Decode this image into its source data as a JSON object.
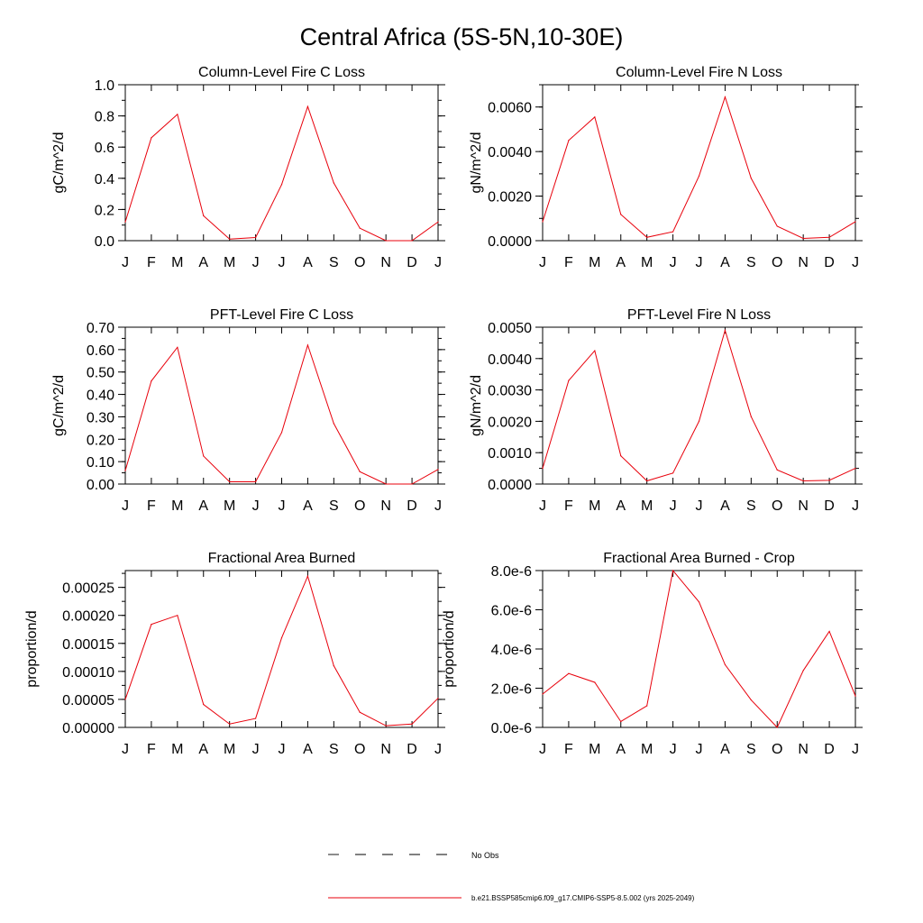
{
  "page": {
    "title": "Central Africa (5S-5N,10-30E)",
    "month_labels": [
      "J",
      "F",
      "M",
      "A",
      "M",
      "J",
      "J",
      "A",
      "S",
      "O",
      "N",
      "D",
      "J"
    ]
  },
  "legend": {
    "obs_label": "No Obs",
    "model_label": "b.e21.BSSP585cmip6.f09_g17.CMIP6-SSP5-8.5.002 (yrs 2025-2049)",
    "model_color": "#e8000b",
    "obs_color": "#000000"
  },
  "chart_data": [
    {
      "type": "line",
      "title": "Column-Level Fire C Loss",
      "ylabel": "gC/m^2/d",
      "categories": [
        "J",
        "F",
        "M",
        "A",
        "M",
        "J",
        "J",
        "A",
        "S",
        "O",
        "N",
        "D",
        "J"
      ],
      "ylim": [
        0,
        1.0
      ],
      "yticks": [
        0.0,
        0.2,
        0.4,
        0.6,
        0.8,
        1.0
      ],
      "ytick_labels": [
        "0.0",
        "0.2",
        "0.4",
        "0.6",
        "0.8",
        "1.0"
      ],
      "y_minor_step": 0.1,
      "series": [
        {
          "values": [
            0.12,
            0.66,
            0.81,
            0.16,
            0.01,
            0.02,
            0.36,
            0.86,
            0.37,
            0.08,
            0.0,
            0.0,
            0.12
          ]
        }
      ]
    },
    {
      "type": "line",
      "title": "Column-Level Fire N Loss",
      "ylabel": "gN/m^2/d",
      "categories": [
        "J",
        "F",
        "M",
        "A",
        "M",
        "J",
        "J",
        "A",
        "S",
        "O",
        "N",
        "D",
        "J"
      ],
      "ylim": [
        0,
        0.007
      ],
      "yticks": [
        0.0,
        0.002,
        0.004,
        0.006
      ],
      "ytick_labels": [
        "0.0000",
        "0.0020",
        "0.0040",
        "0.0060"
      ],
      "y_minor_step": 0.001,
      "series": [
        {
          "values": [
            0.00085,
            0.0045,
            0.00555,
            0.00118,
            0.00015,
            0.0004,
            0.0029,
            0.00645,
            0.0028,
            0.00065,
            0.0001,
            0.00015,
            0.00085
          ]
        }
      ]
    },
    {
      "type": "line",
      "title": "PFT-Level Fire C Loss",
      "ylabel": "gC/m^2/d",
      "categories": [
        "J",
        "F",
        "M",
        "A",
        "M",
        "J",
        "J",
        "A",
        "S",
        "O",
        "N",
        "D",
        "J"
      ],
      "ylim": [
        0,
        0.7
      ],
      "yticks": [
        0.0,
        0.1,
        0.2,
        0.3,
        0.4,
        0.5,
        0.6,
        0.7
      ],
      "ytick_labels": [
        "0.00",
        "0.10",
        "0.20",
        "0.30",
        "0.40",
        "0.50",
        "0.60",
        "0.70"
      ],
      "y_minor_step": 0.05,
      "series": [
        {
          "values": [
            0.06,
            0.46,
            0.61,
            0.125,
            0.01,
            0.01,
            0.23,
            0.62,
            0.27,
            0.055,
            0.0,
            0.0,
            0.065
          ]
        }
      ]
    },
    {
      "type": "line",
      "title": "PFT-Level Fire N Loss",
      "ylabel": "gN/m^2/d",
      "categories": [
        "J",
        "F",
        "M",
        "A",
        "M",
        "J",
        "J",
        "A",
        "S",
        "O",
        "N",
        "D",
        "J"
      ],
      "ylim": [
        0,
        0.005
      ],
      "yticks": [
        0.0,
        0.001,
        0.002,
        0.003,
        0.004,
        0.005
      ],
      "ytick_labels": [
        "0.0000",
        "0.0010",
        "0.0020",
        "0.0030",
        "0.0040",
        "0.0050"
      ],
      "y_minor_step": 0.0005,
      "series": [
        {
          "values": [
            0.0005,
            0.0033,
            0.00425,
            0.0009,
            0.0001,
            0.00035,
            0.002,
            0.0049,
            0.00215,
            0.00045,
            0.0001,
            0.00012,
            0.0005
          ]
        }
      ]
    },
    {
      "type": "line",
      "title": "Fractional Area Burned",
      "ylabel": "proportion/d",
      "categories": [
        "J",
        "F",
        "M",
        "A",
        "M",
        "J",
        "J",
        "A",
        "S",
        "O",
        "N",
        "D",
        "J"
      ],
      "ylim": [
        0,
        0.00028
      ],
      "yticks": [
        0.0,
        5e-05,
        0.0001,
        0.00015,
        0.0002,
        0.00025
      ],
      "ytick_labels": [
        "0.00000",
        "0.00005",
        "0.00010",
        "0.00015",
        "0.00020",
        "0.00025"
      ],
      "y_minor_step": 2.5e-05,
      "series": [
        {
          "values": [
            5e-05,
            0.000184,
            0.0002,
            4.1e-05,
            6e-06,
            1.6e-05,
            0.00016,
            0.00027,
            0.00011,
            2.7e-05,
            3e-06,
            6e-06,
            5.2e-05
          ]
        }
      ]
    },
    {
      "type": "line",
      "title": "Fractional Area Burned - Crop",
      "ylabel": "proportion/d",
      "categories": [
        "J",
        "F",
        "M",
        "A",
        "M",
        "J",
        "J",
        "A",
        "S",
        "O",
        "N",
        "D",
        "J"
      ],
      "ylim": [
        0,
        8e-06
      ],
      "yticks": [
        0.0,
        2e-06,
        4e-06,
        6e-06,
        8e-06
      ],
      "ytick_labels": [
        "0.0e-6",
        "2.0e-6",
        "4.0e-6",
        "6.0e-6",
        "8.0e-6"
      ],
      "y_minor_step": 1e-06,
      "series": [
        {
          "values": [
            1.7e-06,
            2.75e-06,
            2.3e-06,
            3e-07,
            1.1e-06,
            8e-06,
            6.4e-06,
            3.2e-06,
            1.4e-06,
            0.0,
            2.9e-06,
            4.9e-06,
            1.6e-06
          ]
        }
      ]
    }
  ]
}
